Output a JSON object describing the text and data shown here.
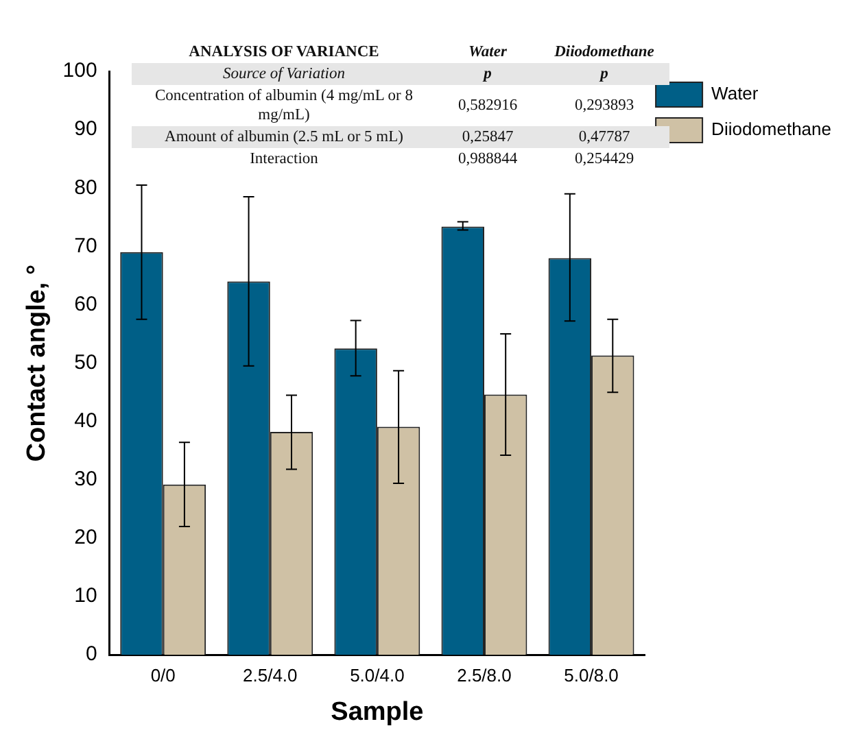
{
  "chart_data": {
    "type": "bar",
    "xlabel": "Sample",
    "ylabel": "Contact angle, °",
    "categories": [
      "0/0",
      "2.5/4.0",
      "5.0/4.0",
      "2.5/8.0",
      "5.0/8.0"
    ],
    "series": [
      {
        "name": "Water",
        "color": "#005f87",
        "values": [
          69,
          64,
          52.5,
          73.4,
          68
        ],
        "errors": [
          [
            57.5,
            80.5
          ],
          [
            49.5,
            78.5
          ],
          [
            47.8,
            57.3
          ],
          [
            72.8,
            74.2
          ],
          [
            57.2,
            79
          ]
        ]
      },
      {
        "name": "Diiodomethane",
        "color": "#cfc1a5",
        "values": [
          29.2,
          38.2,
          39.1,
          44.6,
          51.3
        ],
        "errors": [
          [
            22,
            36.4
          ],
          [
            31.8,
            44.5
          ],
          [
            29.4,
            48.7
          ],
          [
            34.2,
            55
          ],
          [
            45,
            57.5
          ]
        ]
      }
    ],
    "ylim": [
      0,
      100
    ],
    "yticks": [
      0,
      10,
      20,
      30,
      40,
      50,
      60,
      70,
      80,
      90,
      100
    ],
    "grid": false,
    "legend": "top right",
    "annotations": [
      "ANALYSIS OF VARIANCE",
      "Water",
      "Diiodomethane",
      "Source of Variation",
      "p",
      "p",
      "Concentration of albumin (4 mg/mL or 8 mg/mL)",
      "0,582916",
      "0,293893",
      "Amount of albumin (2.5 mL or 5 mL)",
      "0,25847",
      "0,47787",
      "Interaction",
      "0,988844",
      "0,254429"
    ]
  }
}
